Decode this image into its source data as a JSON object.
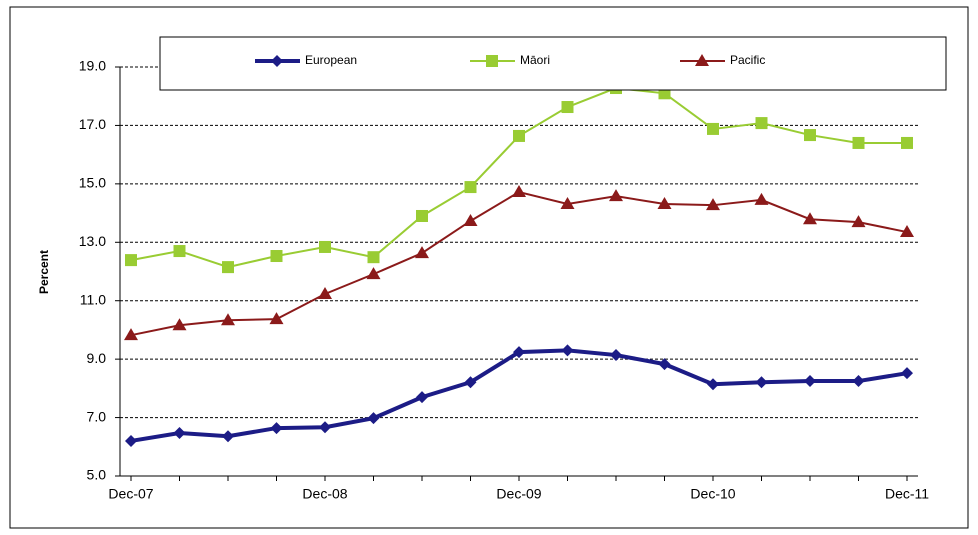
{
  "chart_data": {
    "type": "line",
    "y_label": "Percent",
    "categories": [
      "Dec-07",
      null,
      null,
      null,
      "Dec-08",
      null,
      null,
      null,
      "Dec-09",
      null,
      null,
      null,
      "Dec-10",
      null,
      null,
      null,
      "Dec-11"
    ],
    "series": [
      {
        "name": "European",
        "color": "#1c1c86",
        "marker": "diamond",
        "values": [
          6.2,
          6.47,
          6.36,
          6.64,
          6.67,
          6.98,
          7.7,
          8.21,
          9.24,
          9.3,
          9.14,
          8.83,
          8.14,
          8.21,
          8.25,
          8.25,
          8.52
        ]
      },
      {
        "name": "Māori",
        "color": "#99cc33",
        "marker": "square",
        "values": [
          12.39,
          12.7,
          12.15,
          12.53,
          12.84,
          12.49,
          13.9,
          14.89,
          16.64,
          17.63,
          18.28,
          18.1,
          16.88,
          17.08,
          16.67,
          16.4,
          16.4
        ]
      },
      {
        "name": "Pacific",
        "color": "#8b1a1a",
        "marker": "triangle",
        "values": [
          9.82,
          10.16,
          10.33,
          10.37,
          11.23,
          11.91,
          12.63,
          13.73,
          14.72,
          14.31,
          14.58,
          14.31,
          14.27,
          14.45,
          13.79,
          13.69,
          13.35
        ]
      }
    ],
    "ylim": [
      5,
      19
    ],
    "yticks": [
      {
        "value": 5,
        "label": "5.0"
      },
      {
        "value": 7,
        "label": "7.0"
      },
      {
        "value": 9,
        "label": "9.0"
      },
      {
        "value": 11,
        "label": "11.0"
      },
      {
        "value": 13,
        "label": "13.0"
      },
      {
        "value": 15,
        "label": "15.0"
      },
      {
        "value": 17,
        "label": "17.0"
      },
      {
        "value": 19,
        "label": "19.0"
      }
    ],
    "grid": true
  }
}
